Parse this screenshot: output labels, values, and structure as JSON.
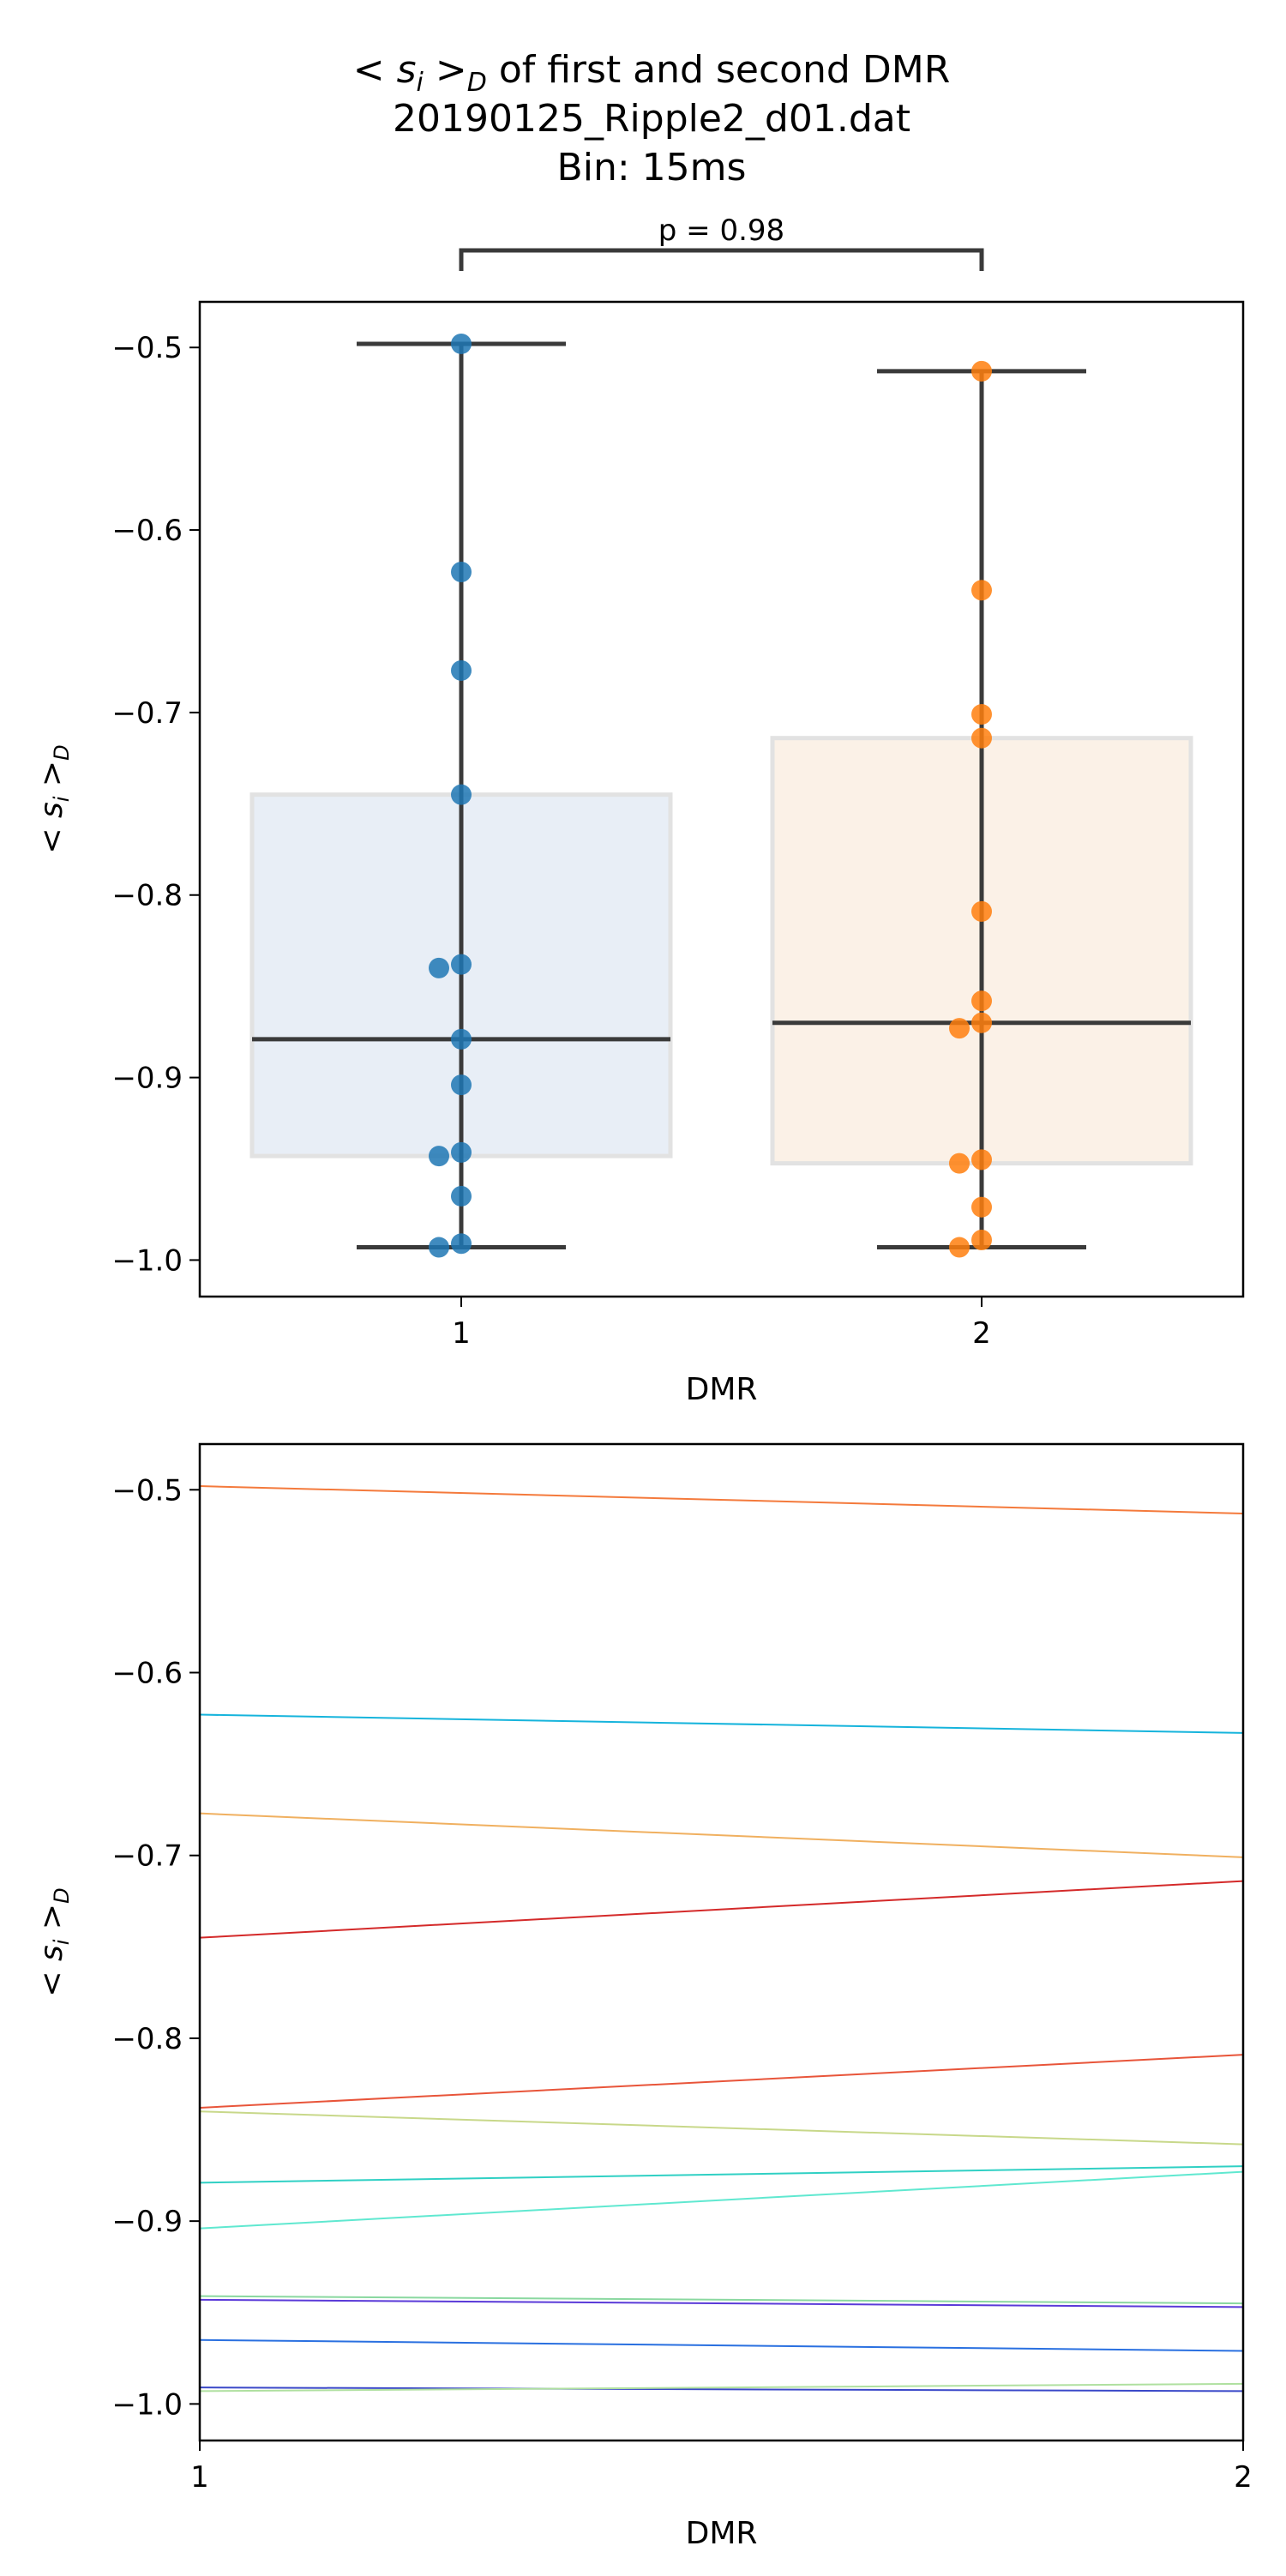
{
  "figure": {
    "title_lines": [
      "< s_i >_D of first and second DMR",
      "20190125_Ripple2_d01.dat",
      "Bin: 15ms"
    ],
    "title_math": {
      "pre": "< ",
      "var": "s",
      "sub": "i",
      "mid": " >",
      "sub2": "D",
      "post": " of first and second DMR"
    }
  },
  "chart_data": [
    {
      "type": "box",
      "ylabel": "< s_i >_D",
      "xlabel": "DMR",
      "ylim": [
        -1.02,
        -0.475
      ],
      "yticks": [
        -0.5,
        -0.6,
        -0.7,
        -0.8,
        -0.9,
        -1.0
      ],
      "ytick_labels": [
        "−0.5",
        "−0.6",
        "−0.7",
        "−0.8",
        "−0.9",
        "−1.0"
      ],
      "categories": [
        "1",
        "2"
      ],
      "grid": false,
      "significance": {
        "label": "p = 0.98",
        "groups": [
          "1",
          "2"
        ]
      },
      "series": [
        {
          "category": "1",
          "color": "#1f77b4",
          "box_fill": "#e8eef6",
          "q1": -0.943,
          "median": -0.879,
          "q3": -0.745,
          "whisker_low": -0.993,
          "whisker_high": -0.498,
          "points": [
            -0.498,
            -0.623,
            -0.677,
            -0.745,
            -0.838,
            -0.84,
            -0.879,
            -0.904,
            -0.941,
            -0.943,
            -0.965,
            -0.991,
            -0.993
          ]
        },
        {
          "category": "2",
          "color": "#ff7f0e",
          "box_fill": "#fbf1e7",
          "q1": -0.947,
          "median": -0.87,
          "q3": -0.714,
          "whisker_low": -0.993,
          "whisker_high": -0.513,
          "points": [
            -0.513,
            -0.633,
            -0.701,
            -0.714,
            -0.809,
            -0.858,
            -0.87,
            -0.873,
            -0.945,
            -0.947,
            -0.971,
            -0.989,
            -0.993
          ]
        }
      ]
    },
    {
      "type": "line",
      "ylabel": "< s_i >_D",
      "xlabel": "DMR",
      "x": [
        1,
        2
      ],
      "xticks": [
        "1",
        "2"
      ],
      "xlim": [
        1,
        2
      ],
      "ylim": [
        -1.02,
        -0.475
      ],
      "yticks": [
        -0.5,
        -0.6,
        -0.7,
        -0.8,
        -0.9,
        -1.0
      ],
      "ytick_labels": [
        "−0.5",
        "−0.6",
        "−0.7",
        "−0.8",
        "−0.9",
        "−1.0"
      ],
      "grid": false,
      "series": [
        {
          "values": [
            -0.498,
            -0.513
          ],
          "color": "#f47a3c"
        },
        {
          "values": [
            -0.623,
            -0.633
          ],
          "color": "#16b4dc"
        },
        {
          "values": [
            -0.677,
            -0.701
          ],
          "color": "#f0b060"
        },
        {
          "values": [
            -0.745,
            -0.714
          ],
          "color": "#d42a2a"
        },
        {
          "values": [
            -0.838,
            -0.809
          ],
          "color": "#e8553a"
        },
        {
          "values": [
            -0.84,
            -0.858
          ],
          "color": "#c8d88a"
        },
        {
          "values": [
            -0.879,
            -0.87
          ],
          "color": "#30d0c4"
        },
        {
          "values": [
            -0.904,
            -0.873
          ],
          "color": "#60e8d0"
        },
        {
          "values": [
            -0.941,
            -0.945
          ],
          "color": "#8ad8a0"
        },
        {
          "values": [
            -0.943,
            -0.947
          ],
          "color": "#5a3ad8"
        },
        {
          "values": [
            -0.965,
            -0.971
          ],
          "color": "#2a70e0"
        },
        {
          "values": [
            -0.991,
            -0.993
          ],
          "color": "#3a48c8"
        },
        {
          "values": [
            -0.993,
            -0.989
          ],
          "color": "#b0e0a0"
        }
      ]
    }
  ]
}
